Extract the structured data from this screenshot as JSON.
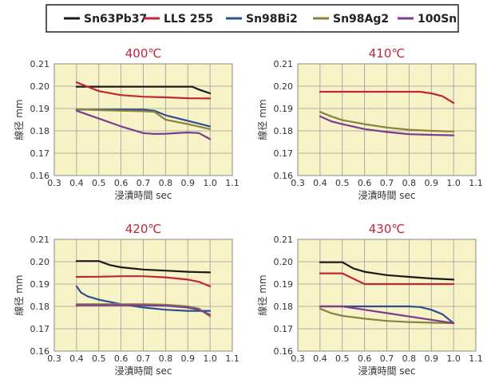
{
  "legend": {
    "placement": "top-center",
    "entries": [
      {
        "name": "Sn63Pb37",
        "color": "#1a1a1a"
      },
      {
        "name": "LLS 255",
        "color": "#c0263a"
      },
      {
        "name": "Sn98Bi2",
        "color": "#2d4f8e"
      },
      {
        "name": "Sn98Ag2",
        "color": "#8a8240"
      },
      {
        "name": "100Sn",
        "color": "#7c3d8e"
      }
    ]
  },
  "colors": {
    "plot_background": "#f7f3c6",
    "grid": "#9a9a9a",
    "title": "#c0263a",
    "text": "#333333"
  },
  "chart_data": [
    {
      "type": "line",
      "title": "400℃",
      "xlabel": "浸漬時間 sec",
      "ylabel": "線径 mm",
      "xlim": [
        0.3,
        1.1
      ],
      "ylim": [
        0.16,
        0.21
      ],
      "xticks": [
        "0.3",
        "0.4",
        "0.5",
        "0.6",
        "0.7",
        "0.8",
        "0.9",
        "1.0",
        "1.1"
      ],
      "yticks": [
        "0.16",
        "0.17",
        "0.18",
        "0.19",
        "0.20",
        "0.21"
      ],
      "grid": true,
      "series": [
        {
          "name": "Sn63Pb37",
          "x": [
            0.4,
            0.5,
            0.6,
            0.7,
            0.8,
            0.9,
            0.92,
            0.95,
            1.0
          ],
          "y": [
            0.1998,
            0.1998,
            0.1998,
            0.1998,
            0.1998,
            0.1998,
            0.1998,
            0.1985,
            0.1968
          ]
        },
        {
          "name": "LLS 255",
          "x": [
            0.4,
            0.45,
            0.5,
            0.6,
            0.7,
            0.8,
            0.9,
            1.0
          ],
          "y": [
            0.2017,
            0.1998,
            0.1978,
            0.196,
            0.1953,
            0.195,
            0.1946,
            0.1945
          ]
        },
        {
          "name": "Sn98Bi2",
          "x": [
            0.4,
            0.5,
            0.6,
            0.7,
            0.75,
            0.8,
            0.9,
            1.0
          ],
          "y": [
            0.1895,
            0.1895,
            0.1895,
            0.1895,
            0.189,
            0.187,
            0.1845,
            0.182
          ]
        },
        {
          "name": "Sn98Ag2",
          "x": [
            0.4,
            0.5,
            0.6,
            0.7,
            0.75,
            0.8,
            0.9,
            1.0
          ],
          "y": [
            0.1897,
            0.1893,
            0.189,
            0.1888,
            0.1885,
            0.185,
            0.183,
            0.1808
          ]
        },
        {
          "name": "100Sn",
          "x": [
            0.4,
            0.5,
            0.6,
            0.7,
            0.75,
            0.8,
            0.9,
            0.95,
            1.0
          ],
          "y": [
            0.189,
            0.1855,
            0.182,
            0.179,
            0.1786,
            0.1787,
            0.1793,
            0.179,
            0.1763
          ]
        }
      ]
    },
    {
      "type": "line",
      "title": "410℃",
      "xlabel": "浸漬時間 sec",
      "ylabel": "線径 mm",
      "xlim": [
        0.3,
        1.1
      ],
      "ylim": [
        0.16,
        0.21
      ],
      "xticks": [
        "0.3",
        "0.4",
        "0.5",
        "0.6",
        "0.7",
        "0.8",
        "0.9",
        "1.0",
        "1.1"
      ],
      "yticks": [
        "0.16",
        "0.17",
        "0.18",
        "0.19",
        "0.20",
        "0.21"
      ],
      "grid": true,
      "series": [
        {
          "name": "LLS 255",
          "x": [
            0.4,
            0.5,
            0.6,
            0.7,
            0.8,
            0.85,
            0.9,
            0.95,
            1.0
          ],
          "y": [
            0.1975,
            0.1975,
            0.1975,
            0.1975,
            0.1975,
            0.1975,
            0.1968,
            0.1955,
            0.1925
          ]
        },
        {
          "name": "Sn98Ag2",
          "x": [
            0.4,
            0.45,
            0.5,
            0.6,
            0.7,
            0.8,
            0.9,
            1.0
          ],
          "y": [
            0.1885,
            0.1865,
            0.1848,
            0.183,
            0.1815,
            0.1805,
            0.18,
            0.1797
          ]
        },
        {
          "name": "100Sn",
          "x": [
            0.4,
            0.45,
            0.5,
            0.6,
            0.7,
            0.8,
            0.9,
            1.0
          ],
          "y": [
            0.1865,
            0.1843,
            0.183,
            0.1808,
            0.1795,
            0.1785,
            0.1782,
            0.178
          ]
        }
      ]
    },
    {
      "type": "line",
      "title": "420℃",
      "xlabel": "浸漬時間 sec",
      "ylabel": "線径 mm",
      "xlim": [
        0.3,
        1.1
      ],
      "ylim": [
        0.16,
        0.21
      ],
      "xticks": [
        "0.3",
        "0.4",
        "0.5",
        "0.6",
        "0.7",
        "0.8",
        "0.9",
        "1.0",
        "1.1"
      ],
      "yticks": [
        "0.16",
        "0.17",
        "0.18",
        "0.19",
        "0.20",
        "0.21"
      ],
      "grid": true,
      "series": [
        {
          "name": "Sn63Pb37",
          "x": [
            0.4,
            0.5,
            0.55,
            0.6,
            0.7,
            0.8,
            0.9,
            1.0
          ],
          "y": [
            0.2003,
            0.2003,
            0.1985,
            0.1975,
            0.1965,
            0.196,
            0.1955,
            0.1952
          ]
        },
        {
          "name": "LLS 255",
          "x": [
            0.4,
            0.5,
            0.6,
            0.7,
            0.8,
            0.9,
            0.95,
            1.0
          ],
          "y": [
            0.1932,
            0.1933,
            0.1935,
            0.1935,
            0.193,
            0.192,
            0.191,
            0.189
          ]
        },
        {
          "name": "Sn98Bi2",
          "x": [
            0.4,
            0.42,
            0.45,
            0.5,
            0.6,
            0.7,
            0.8,
            0.9,
            1.0
          ],
          "y": [
            0.189,
            0.1862,
            0.1845,
            0.183,
            0.181,
            0.1795,
            0.1785,
            0.178,
            0.178
          ]
        },
        {
          "name": "Sn98Ag2",
          "x": [
            0.4,
            0.5,
            0.6,
            0.7,
            0.8,
            0.9,
            0.95,
            1.0
          ],
          "y": [
            0.181,
            0.181,
            0.181,
            0.181,
            0.1808,
            0.18,
            0.179,
            0.1755
          ]
        },
        {
          "name": "100Sn",
          "x": [
            0.4,
            0.5,
            0.6,
            0.7,
            0.8,
            0.9,
            0.95,
            1.0
          ],
          "y": [
            0.1805,
            0.1805,
            0.1805,
            0.1805,
            0.1803,
            0.1795,
            0.1785,
            0.1763
          ]
        }
      ]
    },
    {
      "type": "line",
      "title": "430℃",
      "xlabel": "浸漬時間 sec",
      "ylabel": "線径 mm",
      "xlim": [
        0.3,
        1.1
      ],
      "ylim": [
        0.16,
        0.21
      ],
      "xticks": [
        "0.3",
        "0.4",
        "0.5",
        "0.6",
        "0.7",
        "0.8",
        "0.9",
        "1.0",
        "1.1"
      ],
      "yticks": [
        "0.16",
        "0.17",
        "0.18",
        "0.19",
        "0.20",
        "0.21"
      ],
      "grid": true,
      "series": [
        {
          "name": "Sn63Pb37",
          "x": [
            0.4,
            0.5,
            0.55,
            0.6,
            0.7,
            0.8,
            0.9,
            1.0
          ],
          "y": [
            0.1998,
            0.1998,
            0.197,
            0.1955,
            0.194,
            0.1932,
            0.1925,
            0.192
          ]
        },
        {
          "name": "LLS 255",
          "x": [
            0.4,
            0.5,
            0.6,
            0.7,
            0.8,
            0.9,
            1.0
          ],
          "y": [
            0.1948,
            0.1948,
            0.19,
            0.19,
            0.19,
            0.19,
            0.19
          ]
        },
        {
          "name": "Sn98Bi2",
          "x": [
            0.4,
            0.5,
            0.6,
            0.7,
            0.8,
            0.85,
            0.9,
            0.95,
            1.0
          ],
          "y": [
            0.18,
            0.18,
            0.18,
            0.18,
            0.18,
            0.1797,
            0.1785,
            0.1765,
            0.1725
          ]
        },
        {
          "name": "Sn98Ag2",
          "x": [
            0.4,
            0.45,
            0.5,
            0.6,
            0.7,
            0.8,
            0.9,
            1.0
          ],
          "y": [
            0.179,
            0.177,
            0.1758,
            0.1745,
            0.1735,
            0.173,
            0.1727,
            0.1725
          ]
        },
        {
          "name": "100Sn",
          "x": [
            0.4,
            0.5,
            0.6,
            0.7,
            0.8,
            0.9,
            1.0
          ],
          "y": [
            0.18,
            0.18,
            0.1785,
            0.177,
            0.1755,
            0.174,
            0.1725
          ]
        }
      ]
    }
  ]
}
